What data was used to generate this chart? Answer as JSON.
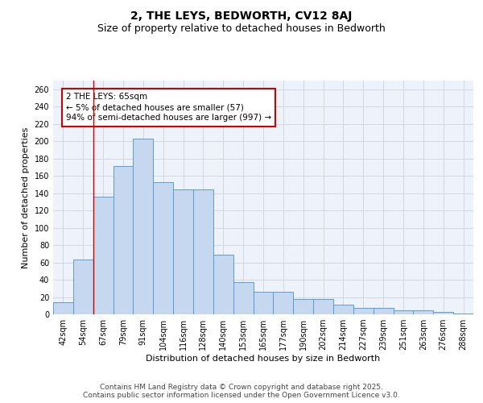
{
  "title_line1": "2, THE LEYS, BEDWORTH, CV12 8AJ",
  "title_line2": "Size of property relative to detached houses in Bedworth",
  "xlabel": "Distribution of detached houses by size in Bedworth",
  "ylabel": "Number of detached properties",
  "categories": [
    "42sqm",
    "54sqm",
    "67sqm",
    "79sqm",
    "91sqm",
    "104sqm",
    "116sqm",
    "128sqm",
    "140sqm",
    "153sqm",
    "165sqm",
    "177sqm",
    "190sqm",
    "202sqm",
    "214sqm",
    "227sqm",
    "239sqm",
    "251sqm",
    "263sqm",
    "276sqm",
    "288sqm"
  ],
  "values": [
    14,
    63,
    136,
    171,
    203,
    153,
    144,
    144,
    69,
    37,
    26,
    26,
    18,
    18,
    11,
    7,
    7,
    5,
    5,
    3,
    1
  ],
  "bar_color": "#c5d8f0",
  "bar_edge_color": "#5b9bd5",
  "grid_color": "#d0d8e8",
  "background_color": "#eef2fa",
  "annotation_text": "2 THE LEYS: 65sqm\n← 5% of detached houses are smaller (57)\n94% of semi-detached houses are larger (997) →",
  "annotation_box_color": "#ffffff",
  "annotation_box_edge_color": "#cc0000",
  "vline_color": "#cc0000",
  "vline_x": 1.5,
  "ylim": [
    0,
    270
  ],
  "yticks": [
    0,
    20,
    40,
    60,
    80,
    100,
    120,
    140,
    160,
    180,
    200,
    220,
    240,
    260
  ],
  "footer_text": "Contains HM Land Registry data © Crown copyright and database right 2025.\nContains public sector information licensed under the Open Government Licence v3.0.",
  "title_fontsize": 10,
  "subtitle_fontsize": 9,
  "axis_label_fontsize": 8,
  "tick_fontsize": 7,
  "annotation_fontsize": 7.5,
  "footer_fontsize": 6.5
}
